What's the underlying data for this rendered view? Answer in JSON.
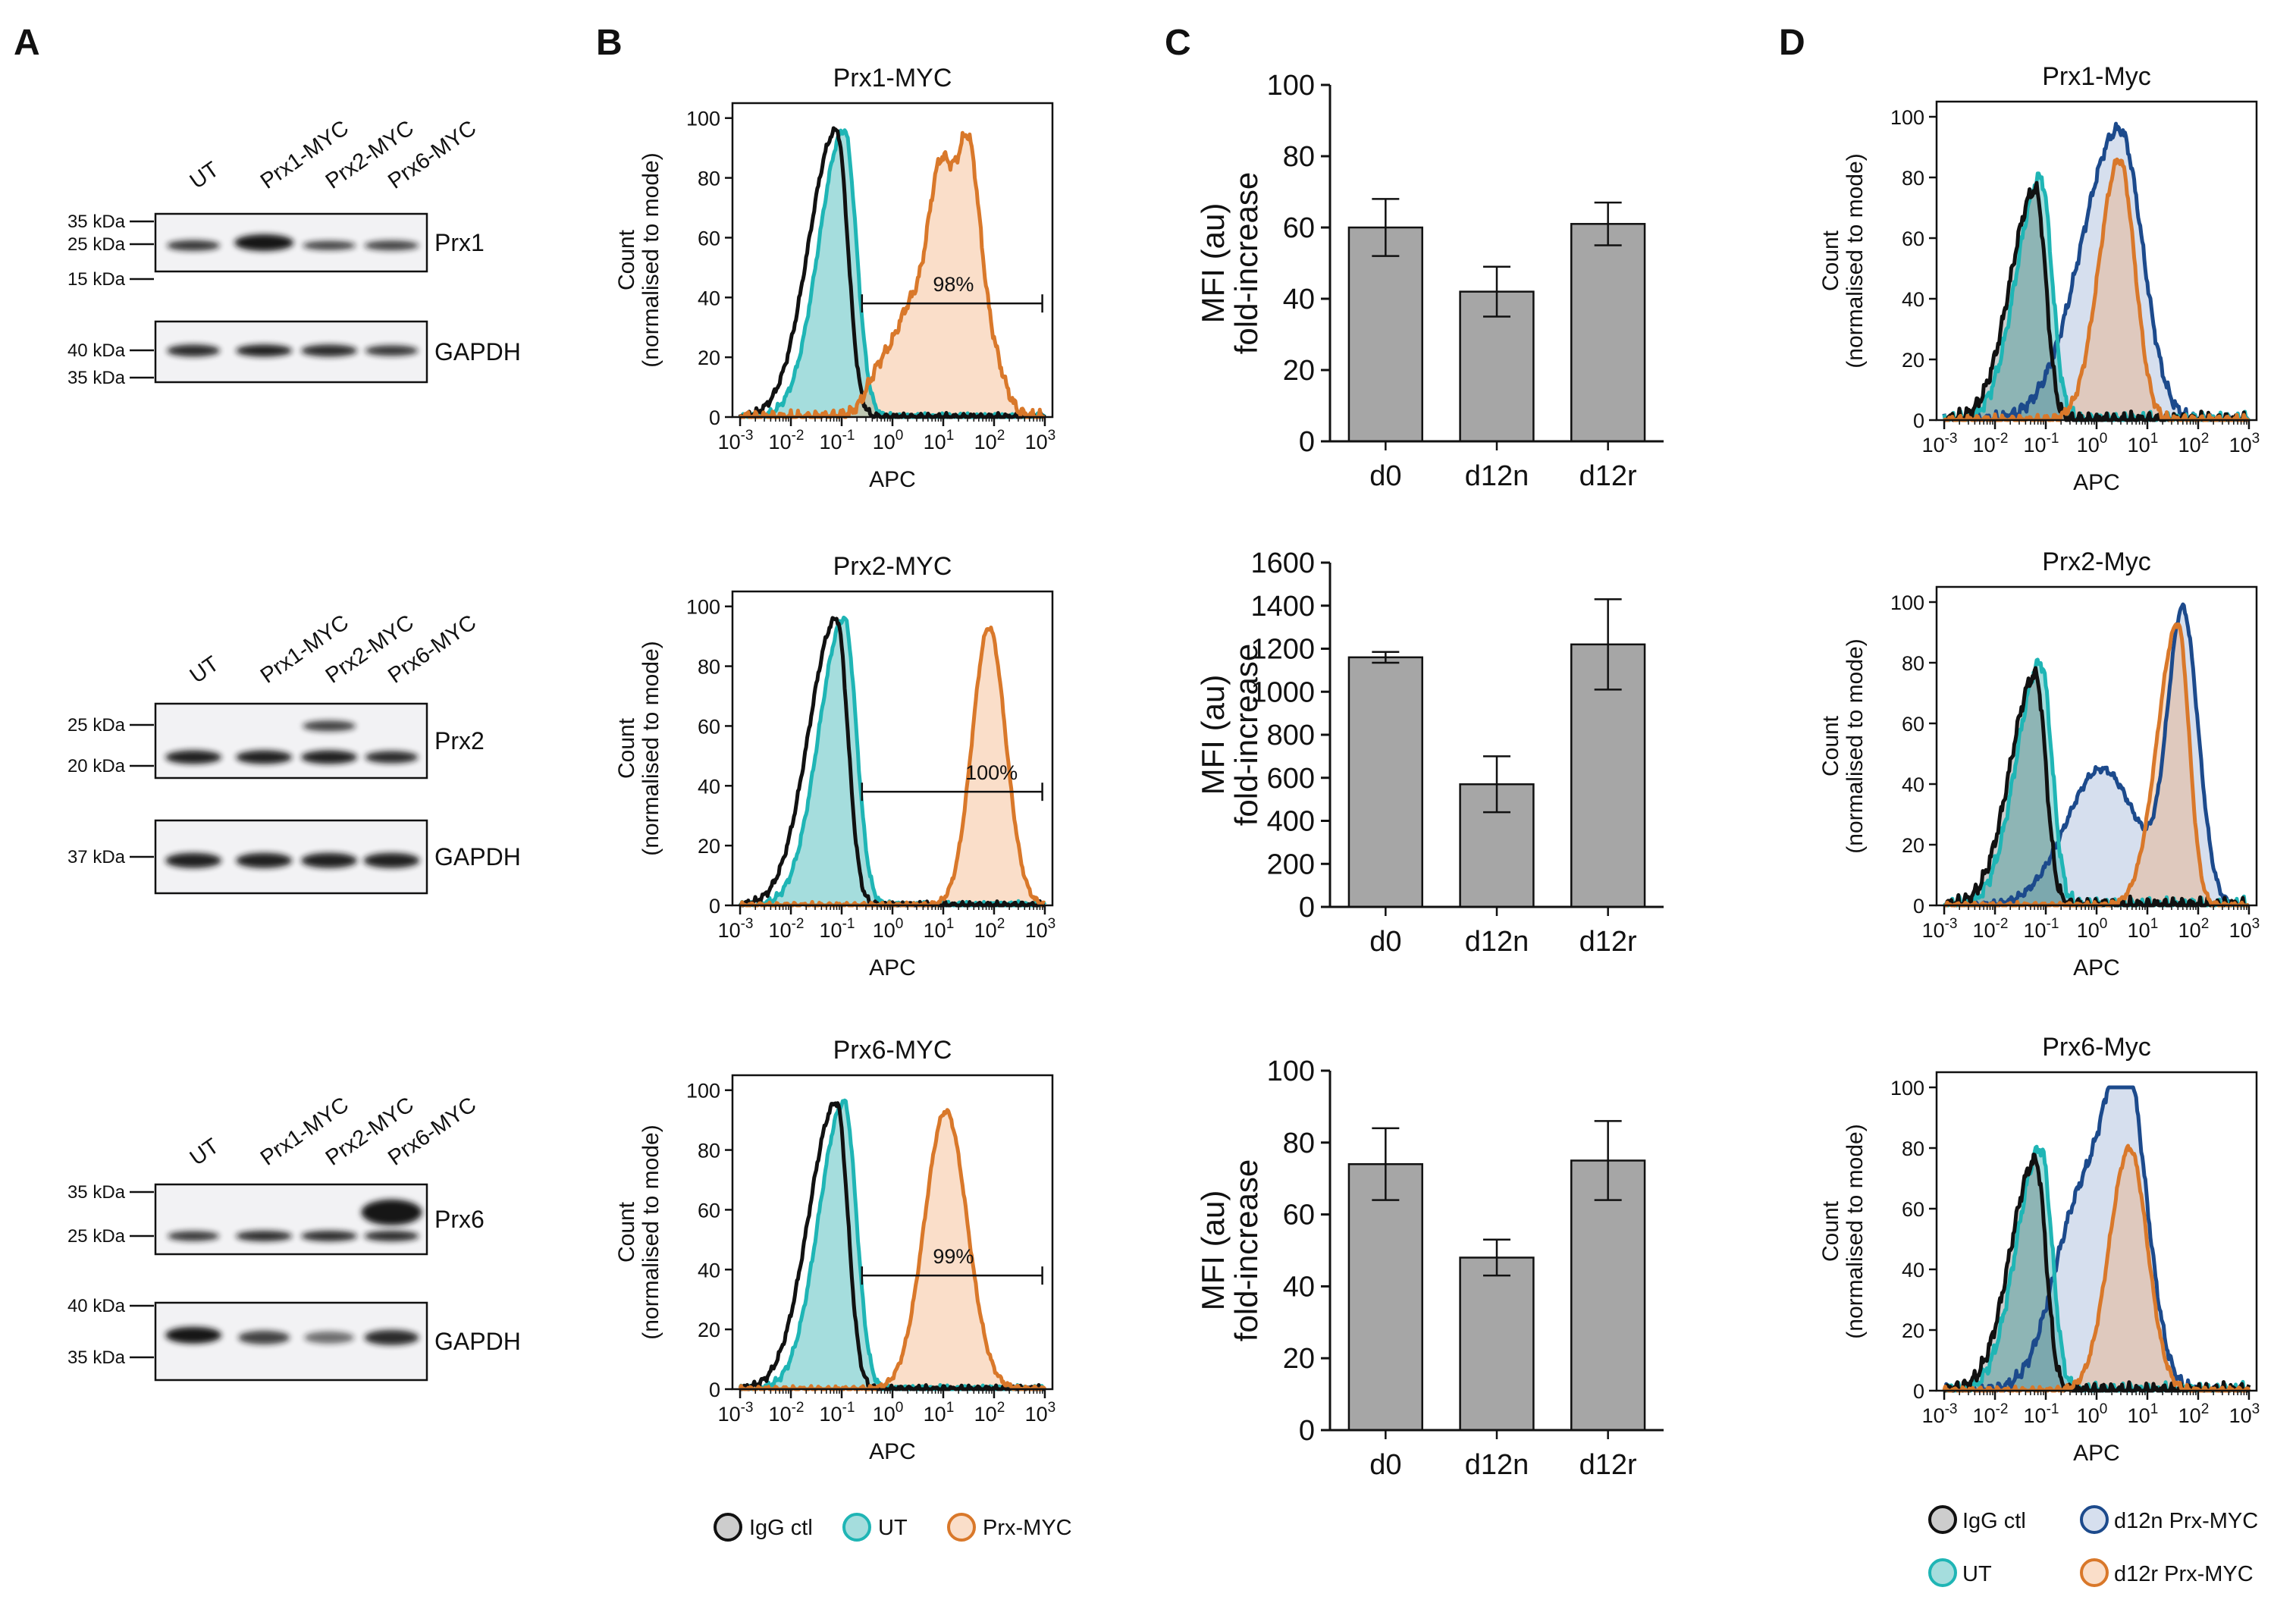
{
  "panels": {
    "A": {
      "letter": "A",
      "blots": [
        {
          "lanes": [
            "UT",
            "Prx1-MYC",
            "Prx2-MYC",
            "Prx6-MYC"
          ],
          "top": {
            "protein": "Prx1",
            "markers": [
              "35 kDa",
              "25 kDa",
              "15 kDa"
            ]
          },
          "bottom": {
            "protein": "GAPDH",
            "markers": [
              "40 kDa",
              "35 kDa"
            ]
          }
        },
        {
          "lanes": [
            "UT",
            "Prx1-MYC",
            "Prx2-MYC",
            "Prx6-MYC"
          ],
          "top": {
            "protein": "Prx2",
            "markers": [
              "25 kDa",
              "20 kDa"
            ]
          },
          "bottom": {
            "protein": "GAPDH",
            "markers": [
              "37 kDa"
            ]
          }
        },
        {
          "lanes": [
            "UT",
            "Prx1-MYC",
            "Prx2-MYC",
            "Prx6-MYC"
          ],
          "top": {
            "protein": "Prx6",
            "markers": [
              "35 kDa",
              "25 kDa"
            ]
          },
          "bottom": {
            "protein": "GAPDH",
            "markers": [
              "40 kDa",
              "35 kDa"
            ]
          }
        }
      ]
    },
    "B": {
      "letter": "B",
      "xlabel": "APC",
      "ylabel_line1": "Count",
      "ylabel_line2": "(normalised to mode)",
      "y_ticks": [
        "0",
        "20",
        "40",
        "60",
        "80",
        "100"
      ],
      "x_ticks": [
        "-3",
        "-2",
        "-1",
        "0",
        "1",
        "2",
        "3"
      ],
      "x_base": "10",
      "plots": [
        {
          "title": "Prx1-MYC",
          "gate": "98%"
        },
        {
          "title": "Prx2-MYC",
          "gate": "100%"
        },
        {
          "title": "Prx6-MYC",
          "gate": "99%"
        }
      ],
      "legend": [
        "IgG ctl",
        "UT",
        "Prx-MYC"
      ]
    },
    "C": {
      "letter": "C",
      "ylabel_line1": "MFI (au)",
      "ylabel_line2": "fold-increase"
    },
    "D": {
      "letter": "D",
      "xlabel": "APC",
      "ylabel_line1": "Count",
      "ylabel_line2": "(normalised to mode)",
      "y_ticks": [
        "0",
        "20",
        "40",
        "60",
        "80",
        "100"
      ],
      "x_ticks": [
        "-3",
        "-2",
        "-1",
        "0",
        "1",
        "2",
        "3"
      ],
      "x_base": "10",
      "plots": [
        {
          "title": "Prx1-Myc"
        },
        {
          "title": "Prx2-Myc"
        },
        {
          "title": "Prx6-Myc"
        }
      ],
      "legend": [
        "IgG ctl",
        "d12n Prx-MYC",
        "UT",
        "d12r Prx-MYC"
      ]
    }
  },
  "colors": {
    "igg": "#111111",
    "ut": "#1fb5b5",
    "prx": "#d9782a",
    "d12n": "#1c4a8c",
    "bar": "#a6a6a6",
    "ut_fill": "rgba(31,170,170,0.40)",
    "prx_fill": "rgba(242,160,100,0.35)",
    "d12n_fill": "rgba(120,150,200,0.30)",
    "igg_fill": "rgba(90,90,90,0.30)"
  },
  "chart_data": [
    {
      "type": "bar",
      "title": "",
      "categories": [
        "d0",
        "d12n",
        "d12r"
      ],
      "values": [
        60,
        42,
        61
      ],
      "errors": [
        8,
        7,
        6
      ],
      "ylabel": "MFI (au) fold-increase",
      "ylim": [
        0,
        100
      ],
      "yticks": [
        0,
        20,
        40,
        60,
        80,
        100
      ]
    },
    {
      "type": "bar",
      "title": "",
      "categories": [
        "d0",
        "d12n",
        "d12r"
      ],
      "values": [
        1160,
        570,
        1220
      ],
      "errors": [
        25,
        130,
        210
      ],
      "ylabel": "MFI (au) fold-increase",
      "ylim": [
        0,
        1600
      ],
      "yticks": [
        0,
        200,
        400,
        600,
        800,
        1000,
        1200,
        1400,
        1600
      ]
    },
    {
      "type": "bar",
      "title": "",
      "categories": [
        "d0",
        "d12n",
        "d12r"
      ],
      "values": [
        74,
        48,
        75
      ],
      "errors": [
        10,
        5,
        11
      ],
      "ylabel": "MFI (au) fold-increase",
      "ylim": [
        0,
        100
      ],
      "yticks": [
        0,
        20,
        40,
        60,
        80,
        100
      ]
    }
  ]
}
